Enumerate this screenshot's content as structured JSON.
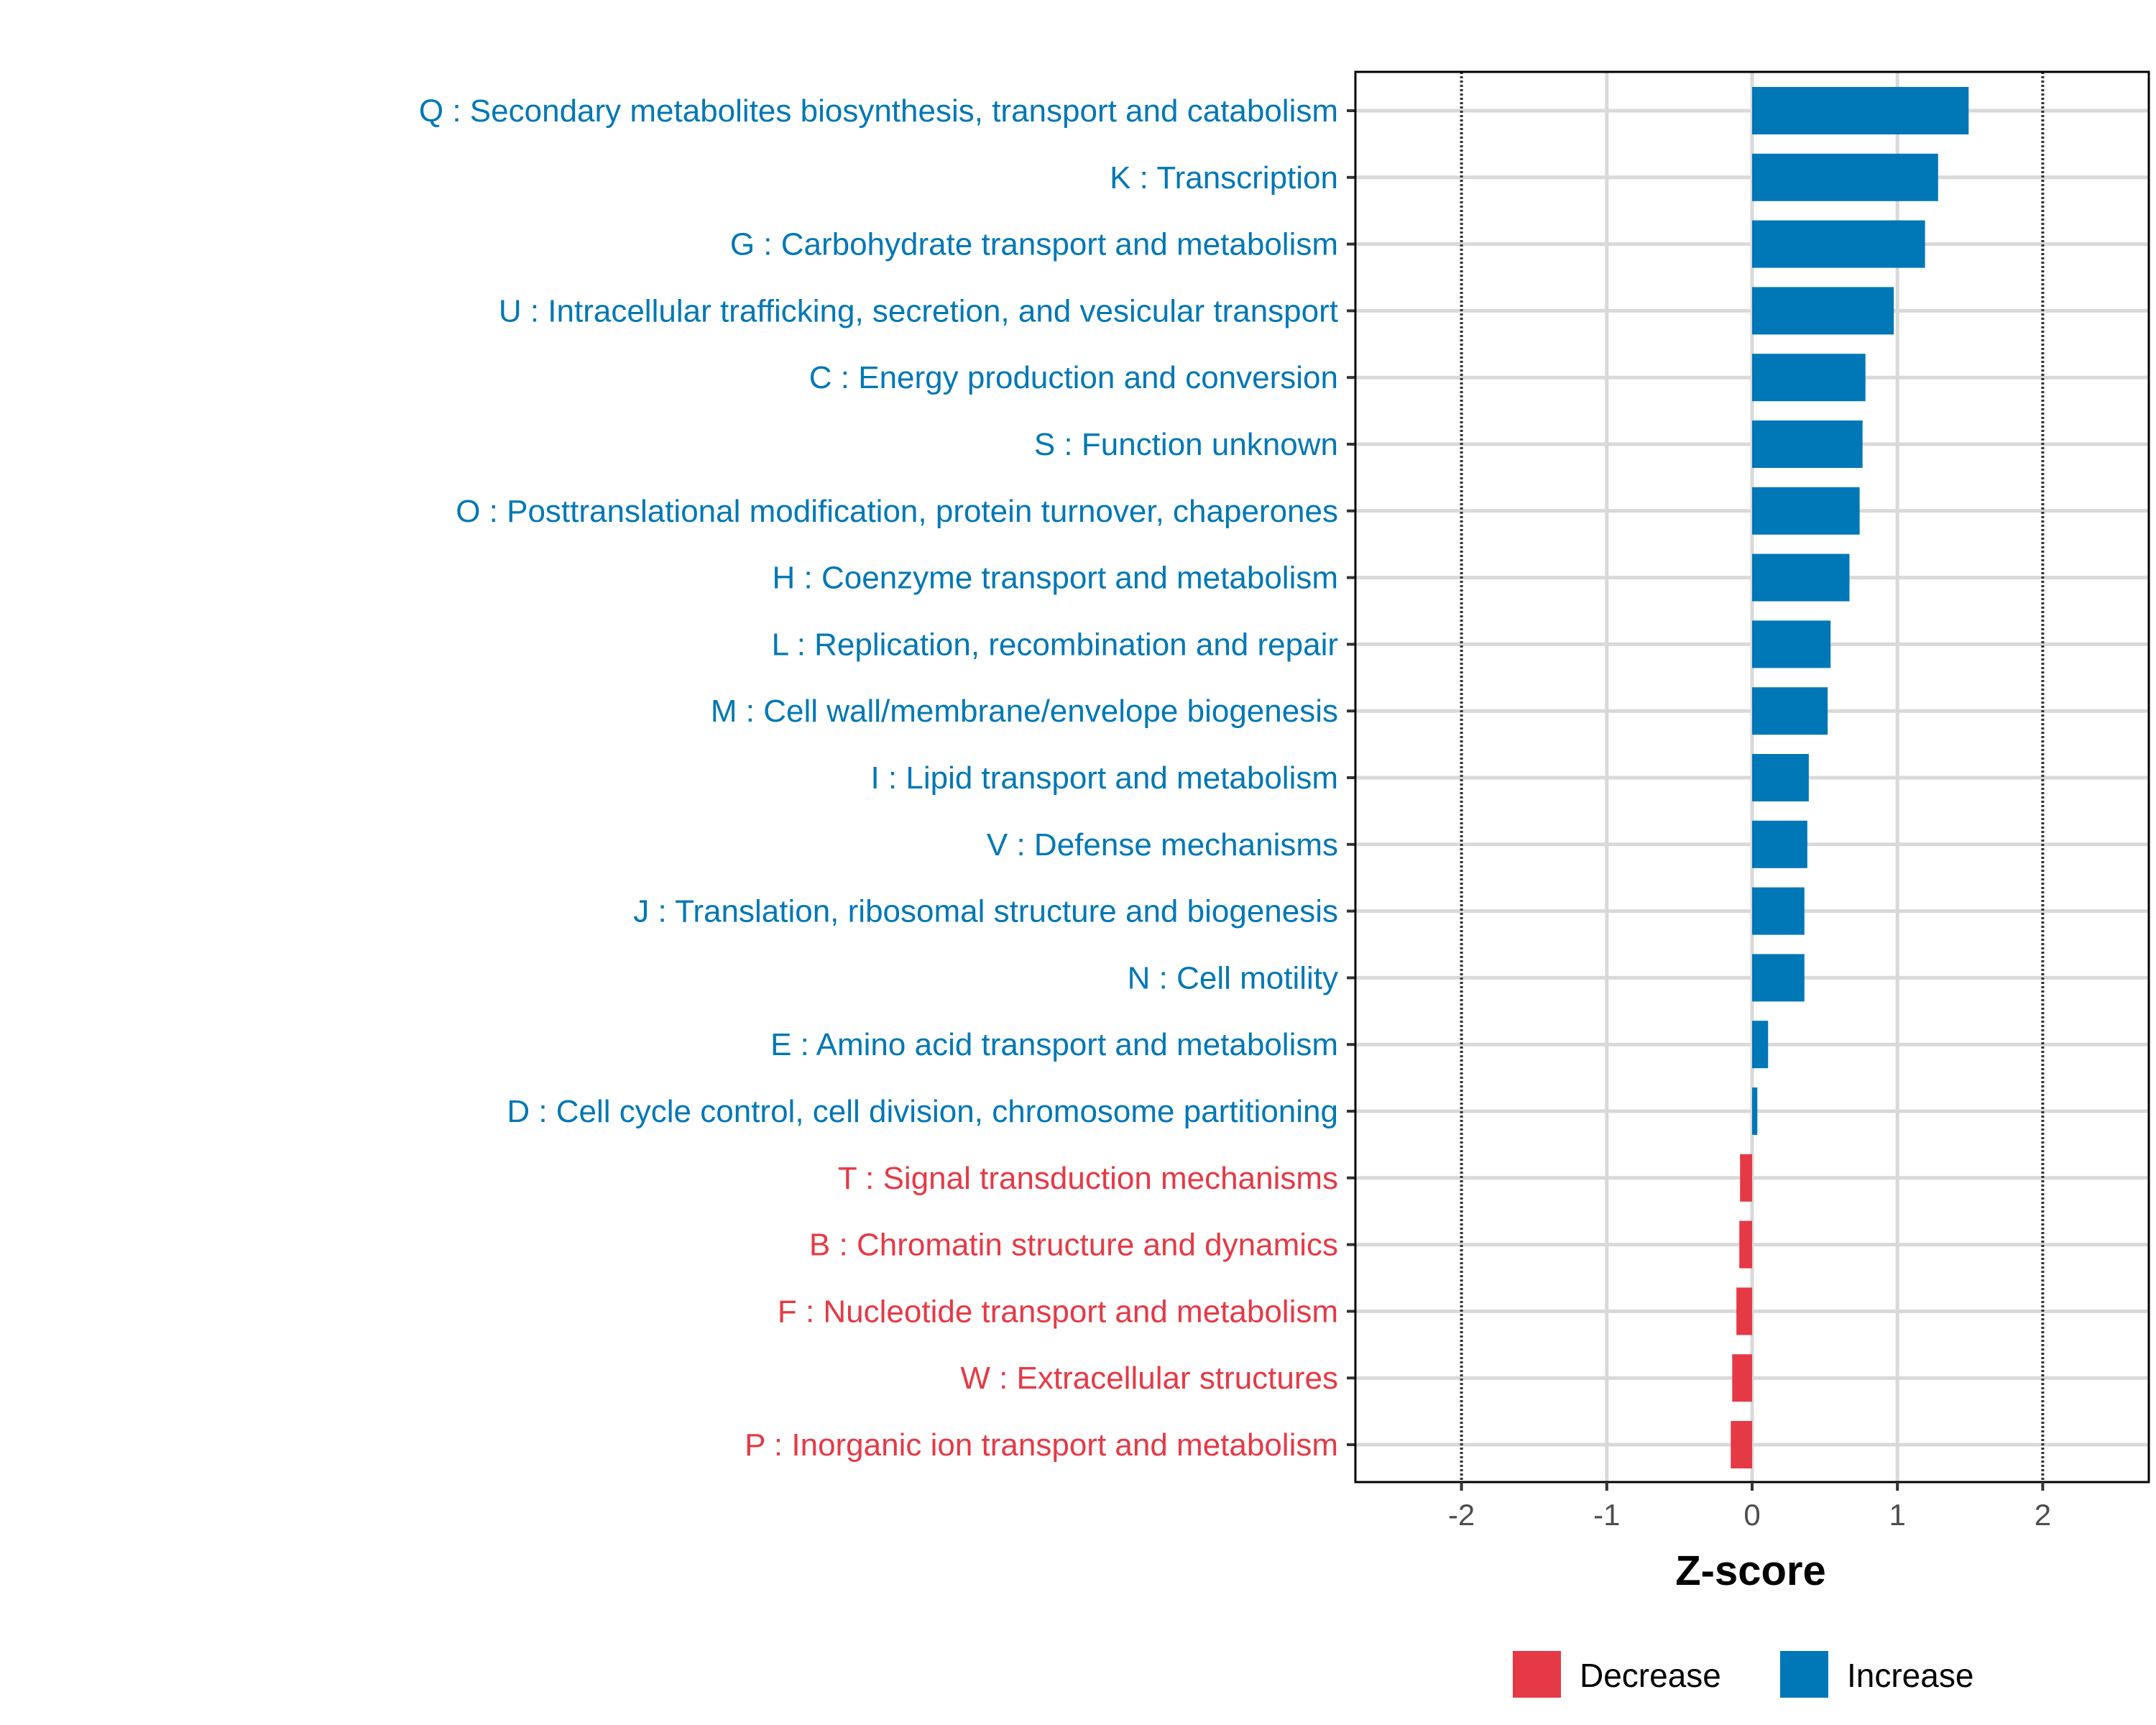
{
  "chart_data": {
    "type": "bar",
    "orientation": "horizontal",
    "title": "",
    "xlabel": "Z-score",
    "ylabel": "",
    "xlim": [
      -2.73,
      2.73
    ],
    "xticks": [
      -2,
      -1,
      0,
      1,
      2
    ],
    "xtick_labels": [
      "-2",
      "-1",
      "0",
      "1",
      "2"
    ],
    "reference_lines": [
      -2,
      2
    ],
    "grid": true,
    "legend": {
      "placement": "bottom",
      "entries": [
        {
          "label": "Decrease",
          "color": "#E63946"
        },
        {
          "label": "Increase",
          "color": "#0077B6"
        }
      ]
    },
    "categories": [
      "Q : Secondary metabolites biosynthesis, transport and catabolism",
      "K : Transcription",
      "G : Carbohydrate transport and metabolism",
      "U : Intracellular trafficking, secretion, and vesicular transport",
      "C : Energy production and conversion",
      "S : Function unknown",
      "O : Posttranslational modification, protein turnover, chaperones",
      "H : Coenzyme transport and metabolism",
      "L : Replication, recombination and repair",
      "M : Cell wall/membrane/envelope biogenesis",
      "I : Lipid transport and metabolism",
      "V : Defense mechanisms",
      "J : Translation, ribosomal structure and biogenesis",
      "N : Cell motility",
      "E : Amino acid transport and metabolism",
      "D : Cell cycle control, cell division, chromosome partitioning",
      "T : Signal transduction mechanisms",
      "B : Chromatin structure and dynamics",
      "F : Nucleotide transport and metabolism",
      "W : Extracellular structures",
      "P : Inorganic ion transport and metabolism"
    ],
    "values": [
      1.49,
      1.28,
      1.19,
      0.975,
      0.78,
      0.76,
      0.74,
      0.67,
      0.54,
      0.52,
      0.39,
      0.38,
      0.36,
      0.36,
      0.11,
      0.036,
      -0.083,
      -0.088,
      -0.108,
      -0.137,
      -0.147
    ],
    "colors": {
      "increase": "#0077B6",
      "decrease": "#E63946"
    }
  }
}
